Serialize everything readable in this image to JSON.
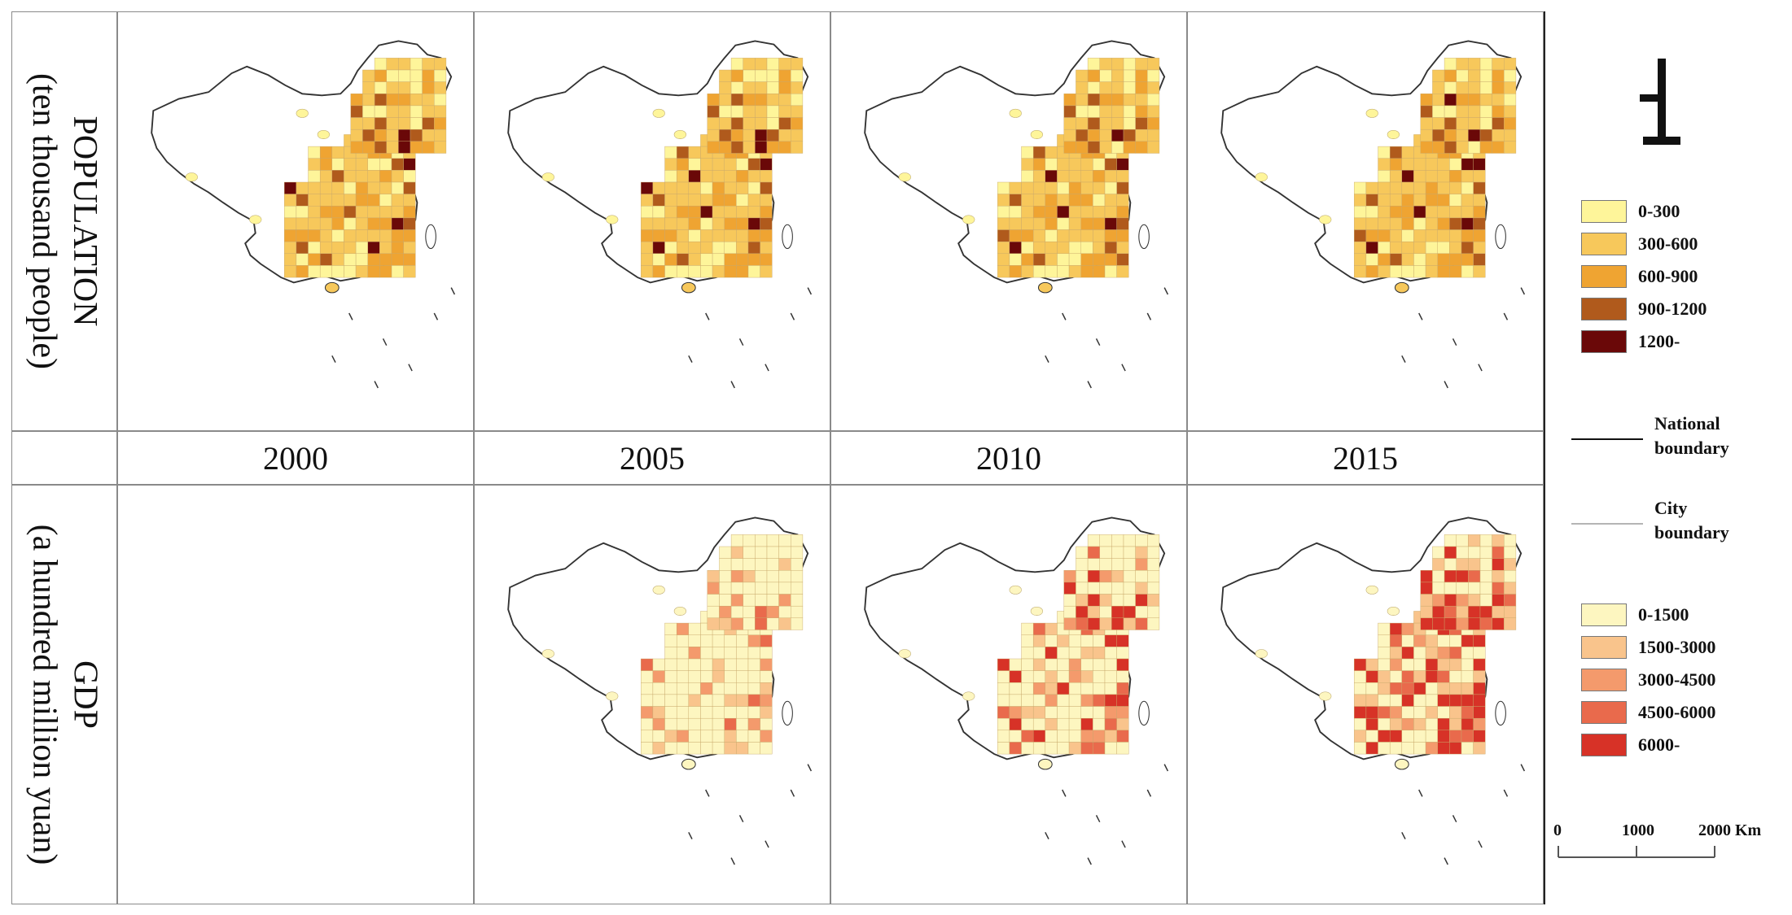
{
  "rows": {
    "population_label": [
      "POPULATION",
      "(ten thousand people)"
    ],
    "gdp_label": [
      "GDP",
      "(a hundred million yuan)"
    ]
  },
  "years": [
    "2000",
    "2005",
    "2010",
    "2015"
  ],
  "panels": {
    "population": [
      {
        "year": "2000",
        "shown": true,
        "palette": "pop"
      },
      {
        "year": "2005",
        "shown": true,
        "palette": "pop"
      },
      {
        "year": "2010",
        "shown": true,
        "palette": "pop"
      },
      {
        "year": "2015",
        "shown": true,
        "palette": "pop"
      }
    ],
    "gdp": [
      {
        "year": "2000",
        "shown": false,
        "palette": "gdp"
      },
      {
        "year": "2005",
        "shown": true,
        "palette": "gdp",
        "level": 0
      },
      {
        "year": "2010",
        "shown": true,
        "palette": "gdp",
        "level": 1
      },
      {
        "year": "2015",
        "shown": true,
        "palette": "gdp",
        "level": 2
      }
    ]
  },
  "legend": {
    "population": [
      {
        "label": "0-300",
        "color": "#fef59a"
      },
      {
        "label": "300-600",
        "color": "#f7c85b"
      },
      {
        "label": "600-900",
        "color": "#efa432"
      },
      {
        "label": "900-1200",
        "color": "#b05a1c"
      },
      {
        "label": "1200-",
        "color": "#6a0808"
      }
    ],
    "boundaries": [
      {
        "label": [
          "National",
          "boundary"
        ],
        "color": "#111111"
      },
      {
        "label": [
          "City",
          "boundary"
        ],
        "color": "#b5b5b5"
      }
    ],
    "gdp": [
      {
        "label": "0-1500",
        "color": "#fdf6c0"
      },
      {
        "label": "1500-3000",
        "color": "#f9c48c"
      },
      {
        "label": "3000-4500",
        "color": "#f49a6c"
      },
      {
        "label": "4500-6000",
        "color": "#e96a4c"
      },
      {
        "label": "6000-",
        "color": "#d73227"
      }
    ]
  },
  "scale_bar": {
    "ticks": [
      "0",
      "1000",
      "2000 Km"
    ]
  },
  "north_arrow": {
    "icon": "north-arrow-icon"
  }
}
